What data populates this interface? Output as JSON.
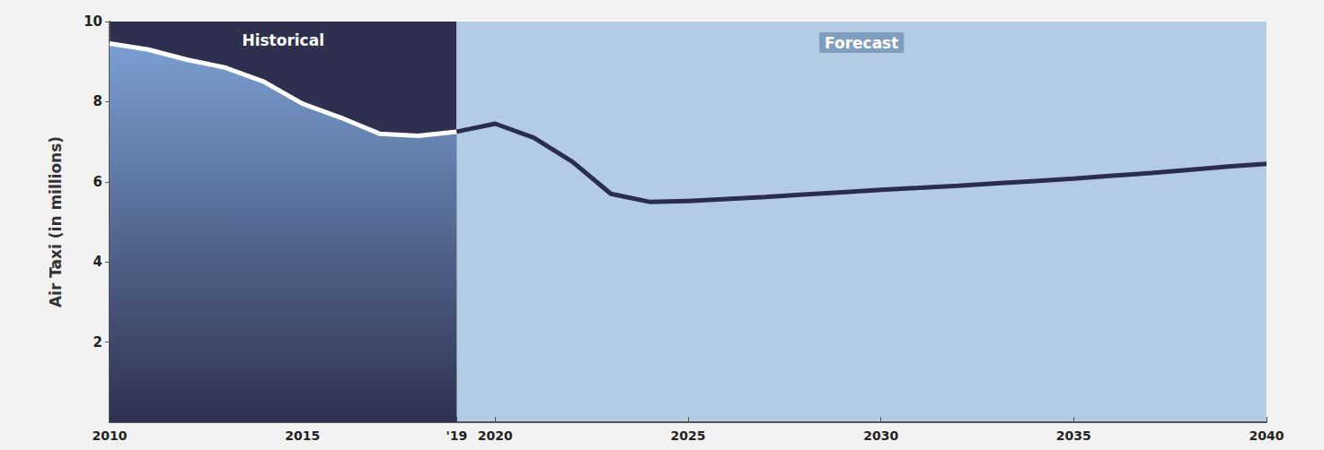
{
  "chart_data": {
    "type": "line",
    "y_label": "Air Taxi (in millions)",
    "x": [
      2010,
      2011,
      2012,
      2013,
      2014,
      2015,
      2016,
      2017,
      2018,
      2019,
      2020,
      2021,
      2022,
      2023,
      2024,
      2025,
      2026,
      2027,
      2028,
      2029,
      2030,
      2031,
      2032,
      2033,
      2034,
      2035,
      2036,
      2037,
      2038,
      2039,
      2040
    ],
    "series": [
      {
        "color": "#ffffff",
        "values": [
          9.45,
          9.3,
          9.05,
          8.85,
          8.5,
          7.95,
          7.6,
          7.2,
          7.15,
          7.25,
          null,
          null,
          null,
          null,
          null,
          null,
          null,
          null,
          null,
          null,
          null,
          null,
          null,
          null,
          null,
          null,
          null,
          null,
          null,
          null,
          null
        ]
      },
      {
        "color": "#2b2d4f",
        "values": [
          null,
          null,
          null,
          null,
          null,
          null,
          null,
          null,
          null,
          7.25,
          7.45,
          7.1,
          6.5,
          5.7,
          5.5,
          5.52,
          5.57,
          5.62,
          5.68,
          5.74,
          5.8,
          5.85,
          5.9,
          5.96,
          6.02,
          6.08,
          6.15,
          6.22,
          6.3,
          6.38,
          6.45
        ]
      }
    ],
    "regions": [
      {
        "label": "Historical",
        "from": 2010,
        "to": 2019,
        "color": "#2f3050"
      },
      {
        "label": "Forecast",
        "from": 2019,
        "to": 2040,
        "color": "#b3cce4"
      }
    ],
    "xlim": [
      2010,
      2040
    ],
    "xticks": [
      2010,
      2015,
      {
        "value": 2019,
        "label": "'19"
      },
      2020,
      2025,
      2030,
      2035,
      2040
    ],
    "ylim": [
      0,
      10
    ],
    "yticks": [
      2,
      4,
      6,
      8,
      10
    ],
    "grid": true
  }
}
